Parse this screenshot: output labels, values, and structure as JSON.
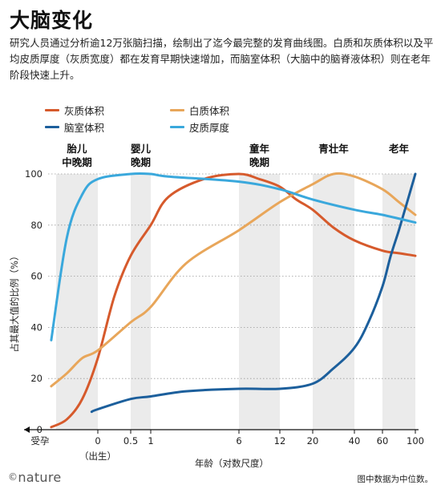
{
  "header": {
    "title": "大脑变化",
    "subtitle": "研究人员通过分析逾12万张脑扫描，绘制出了迄今最完整的发育曲线图。白质和灰质体积以及平均皮质厚度（灰质宽度）都在发育早期快速增加，而脑室体积（大脑中的脑脊液体积）则在老年阶段快速上升。"
  },
  "footer": {
    "brand": "nature",
    "brand_mark": "©",
    "note": "图中数据为中位数。"
  },
  "chart_data": {
    "type": "line",
    "x_scale": "log (age, with prenatal segment before birth)",
    "xlabel": "年龄（对数尺度）",
    "ylabel": "占其最大值的比例（%）",
    "ylim": [
      0,
      100
    ],
    "yticks": [
      "0",
      "20",
      "40",
      "60",
      "80",
      "100"
    ],
    "xticks": [
      {
        "value": "conception",
        "label": "受孕"
      },
      {
        "value": 0,
        "label": "0"
      },
      {
        "value": 0.5,
        "label": "0.5"
      },
      {
        "value": 1,
        "label": "1"
      },
      {
        "value": 6,
        "label": "6"
      },
      {
        "value": 12,
        "label": "12"
      },
      {
        "value": 20,
        "label": "20"
      },
      {
        "value": 40,
        "label": "40"
      },
      {
        "value": 60,
        "label": "60"
      },
      {
        "value": 100,
        "label": "100"
      }
    ],
    "birth_note": "（出生）",
    "stage_bands": [
      {
        "label": [
          "胎儿",
          "中晚期"
        ],
        "x_start": "mid-gestation",
        "x_end": "late gestation",
        "shaded": true
      },
      {
        "label": [
          "婴儿",
          "晚期"
        ],
        "x_start": 0.5,
        "x_end": 1,
        "shaded": true
      },
      {
        "label": [
          "童年",
          "晚期"
        ],
        "x_start": 6,
        "x_end": 12,
        "shaded": true
      },
      {
        "label": [
          "青壮年"
        ],
        "x_start": 20,
        "x_end": 40,
        "shaded": true
      },
      {
        "label": [
          "老年"
        ],
        "x_start": 60,
        "x_end": 100,
        "shaded": true
      }
    ],
    "series": [
      {
        "name": "灰质体积",
        "color": "#d65a2c",
        "points": [
          [
            -0.75,
            1
          ],
          [
            -0.5,
            4
          ],
          [
            -0.25,
            12
          ],
          [
            0,
            28
          ],
          [
            0.25,
            52
          ],
          [
            0.5,
            68
          ],
          [
            1,
            80
          ],
          [
            2,
            91
          ],
          [
            4,
            98
          ],
          [
            6,
            100
          ],
          [
            9,
            98
          ],
          [
            12,
            95
          ],
          [
            16,
            90
          ],
          [
            20,
            86
          ],
          [
            30,
            79
          ],
          [
            40,
            74
          ],
          [
            60,
            70
          ],
          [
            80,
            69
          ],
          [
            100,
            68
          ]
        ]
      },
      {
        "name": "白质体积",
        "color": "#e8a65a",
        "points": [
          [
            -0.75,
            17
          ],
          [
            -0.5,
            22
          ],
          [
            -0.25,
            28
          ],
          [
            0,
            31
          ],
          [
            0.5,
            42
          ],
          [
            1,
            48
          ],
          [
            3,
            65
          ],
          [
            6,
            78
          ],
          [
            12,
            89
          ],
          [
            20,
            96
          ],
          [
            30,
            100
          ],
          [
            40,
            99
          ],
          [
            60,
            94
          ],
          [
            80,
            89
          ],
          [
            100,
            84
          ]
        ]
      },
      {
        "name": "脑室体积",
        "color": "#1c5f9c",
        "points": [
          [
            -0.1,
            7
          ],
          [
            0,
            8
          ],
          [
            0.5,
            12
          ],
          [
            1,
            13
          ],
          [
            3,
            15
          ],
          [
            6,
            16
          ],
          [
            12,
            16
          ],
          [
            20,
            18
          ],
          [
            30,
            24
          ],
          [
            40,
            32
          ],
          [
            50,
            42
          ],
          [
            60,
            56
          ],
          [
            70,
            68
          ],
          [
            80,
            78
          ],
          [
            90,
            89
          ],
          [
            100,
            100
          ]
        ]
      },
      {
        "name": "皮质厚度",
        "color": "#3aa8dc",
        "points": [
          [
            -0.75,
            35
          ],
          [
            -0.5,
            75
          ],
          [
            -0.25,
            92
          ],
          [
            0,
            98
          ],
          [
            0.5,
            100
          ],
          [
            1,
            100
          ],
          [
            2,
            99
          ],
          [
            6,
            97
          ],
          [
            12,
            94
          ],
          [
            20,
            90
          ],
          [
            40,
            86
          ],
          [
            60,
            84
          ],
          [
            100,
            81
          ]
        ]
      }
    ]
  }
}
